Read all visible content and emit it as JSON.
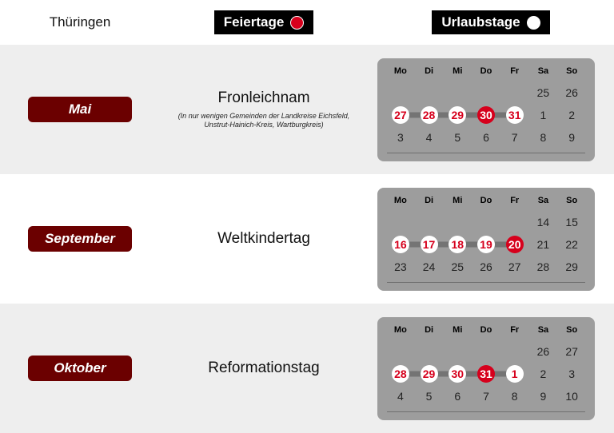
{
  "colors": {
    "rowAlt": "#eeeeee",
    "rowPlain": "#ffffff",
    "monthBtn": "#6b0000",
    "calendarBg": "#9d9d9d",
    "stripColor": "#747474",
    "holidayRed": "#d6001c",
    "vacationWhite": "#ffffff",
    "textDefault": "#222222"
  },
  "header": {
    "state": "Thüringen",
    "holidays_label": "Feiertage",
    "vacation_label": "Urlaubstage"
  },
  "weekdays": [
    "Mo",
    "Di",
    "Mi",
    "Do",
    "Fr",
    "Sa",
    "So"
  ],
  "rows": [
    {
      "bg": "alt",
      "month": "Mai",
      "holiday": "Fronleichnam",
      "note": "(In nur wenigen Gemeinden der Landkreise Eichsfeld, Unstrut-Hainich-Kreis, Wartburgkreis)",
      "calendar": [
        [
          {
            "n": ""
          },
          {
            "n": ""
          },
          {
            "n": ""
          },
          {
            "n": ""
          },
          {
            "n": ""
          },
          {
            "n": "25"
          },
          {
            "n": "26"
          }
        ],
        [
          {
            "n": "27",
            "t": "v",
            "s": "r"
          },
          {
            "n": "28",
            "t": "v",
            "s": "f"
          },
          {
            "n": "29",
            "t": "v",
            "s": "f"
          },
          {
            "n": "30",
            "t": "h",
            "s": "f"
          },
          {
            "n": "31",
            "t": "v",
            "s": "l"
          },
          {
            "n": "1"
          },
          {
            "n": "2"
          }
        ],
        [
          {
            "n": "3"
          },
          {
            "n": "4"
          },
          {
            "n": "5"
          },
          {
            "n": "6"
          },
          {
            "n": "7"
          },
          {
            "n": "8"
          },
          {
            "n": "9"
          }
        ]
      ]
    },
    {
      "bg": "plain",
      "month": "September",
      "holiday": "Weltkindertag",
      "note": "",
      "calendar": [
        [
          {
            "n": ""
          },
          {
            "n": ""
          },
          {
            "n": ""
          },
          {
            "n": ""
          },
          {
            "n": ""
          },
          {
            "n": "14"
          },
          {
            "n": "15"
          }
        ],
        [
          {
            "n": "16",
            "t": "v",
            "s": "r"
          },
          {
            "n": "17",
            "t": "v",
            "s": "f"
          },
          {
            "n": "18",
            "t": "v",
            "s": "f"
          },
          {
            "n": "19",
            "t": "v",
            "s": "f"
          },
          {
            "n": "20",
            "t": "h",
            "s": "l"
          },
          {
            "n": "21"
          },
          {
            "n": "22"
          }
        ],
        [
          {
            "n": "23"
          },
          {
            "n": "24"
          },
          {
            "n": "25"
          },
          {
            "n": "26"
          },
          {
            "n": "27"
          },
          {
            "n": "28"
          },
          {
            "n": "29"
          }
        ]
      ]
    },
    {
      "bg": "alt",
      "month": "Oktober",
      "holiday": "Reformationstag",
      "note": "",
      "calendar": [
        [
          {
            "n": ""
          },
          {
            "n": ""
          },
          {
            "n": ""
          },
          {
            "n": ""
          },
          {
            "n": ""
          },
          {
            "n": "26"
          },
          {
            "n": "27"
          }
        ],
        [
          {
            "n": "28",
            "t": "v",
            "s": "r"
          },
          {
            "n": "29",
            "t": "v",
            "s": "f"
          },
          {
            "n": "30",
            "t": "v",
            "s": "f"
          },
          {
            "n": "31",
            "t": "h",
            "s": "f"
          },
          {
            "n": "1",
            "t": "v",
            "s": "l"
          },
          {
            "n": "2"
          },
          {
            "n": "3"
          }
        ],
        [
          {
            "n": "4"
          },
          {
            "n": "5"
          },
          {
            "n": "6"
          },
          {
            "n": "7"
          },
          {
            "n": "8"
          },
          {
            "n": "9"
          },
          {
            "n": "10"
          }
        ]
      ]
    }
  ]
}
